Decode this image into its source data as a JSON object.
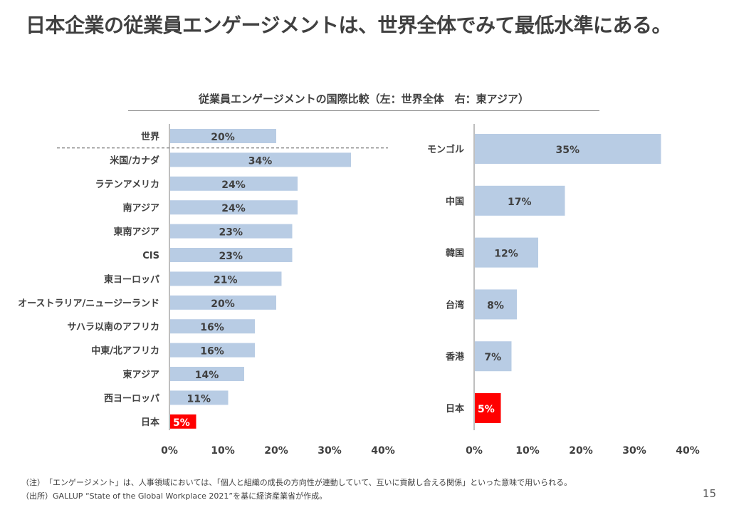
{
  "page": {
    "title": "日本企業の従業員エンゲージメントは、世界全体でみて最低水準にある。",
    "page_number": "15"
  },
  "colors": {
    "bar": "#b8cce4",
    "highlight": "#ff0000",
    "label_text": "#404040",
    "highlight_text": "#ffffff"
  },
  "chart_title": "従業員エンゲージメントの国際比較（左：世界全体　右：東アジア）",
  "chart_data": [
    {
      "type": "bar",
      "orientation": "horizontal",
      "categories": [
        "世界",
        "米国/カナダ",
        "ラテンアメリカ",
        "南アジア",
        "東南アジア",
        "CIS",
        "東ヨーロッパ",
        "オーストラリア/ニュージーランド",
        "サハラ以南のアフリカ",
        "中東/北アフリカ",
        "東アジア",
        "西ヨーロッパ",
        "日本"
      ],
      "values": [
        20,
        34,
        24,
        24,
        23,
        23,
        21,
        20,
        16,
        16,
        14,
        11,
        5
      ],
      "value_labels": [
        "20%",
        "34%",
        "24%",
        "24%",
        "23%",
        "23%",
        "21%",
        "20%",
        "16%",
        "16%",
        "14%",
        "11%",
        "5%"
      ],
      "highlight_category": "日本",
      "xlim": [
        0,
        40
      ],
      "x_ticks": [
        "0%",
        "10%",
        "20%",
        "30%",
        "40%"
      ],
      "separator_after": "世界",
      "grid": false
    },
    {
      "type": "bar",
      "orientation": "horizontal",
      "categories": [
        "モンゴル",
        "中国",
        "韓国",
        "台湾",
        "香港",
        "日本"
      ],
      "values": [
        35,
        17,
        12,
        8,
        7,
        5
      ],
      "value_labels": [
        "35%",
        "17%",
        "12%",
        "8%",
        "7%",
        "5%"
      ],
      "highlight_category": "日本",
      "xlim": [
        0,
        40
      ],
      "x_ticks": [
        "0%",
        "10%",
        "20%",
        "30%",
        "40%"
      ],
      "grid": false
    }
  ],
  "notes": [
    "（注）　「エンゲージメント」は、人事領域においては、「個人と組織の成長の方向性が連動していて、互いに貢献し合える関係」といった意味で用いられる。",
    "（出所）GALLUP “State of the Global Workplace 2021”を基に経済産業省が作成。"
  ]
}
